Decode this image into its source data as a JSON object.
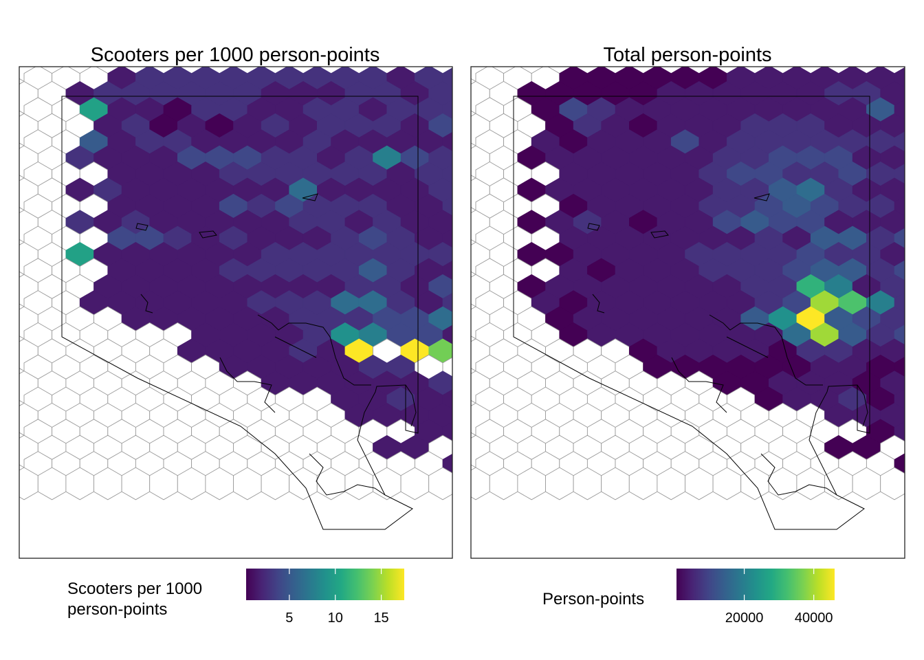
{
  "chart_data": [
    {
      "type": "heatmap",
      "title": "Scooters per 1000 person-points",
      "legend": {
        "title_lines": [
          "Scooters per 1000",
          "person-points"
        ],
        "ticks": [
          5,
          10,
          15
        ],
        "tick_labels": [
          "5",
          "10",
          "15"
        ],
        "range": [
          0.3,
          17.5
        ],
        "palette": "viridis"
      },
      "fill_values": [
        "000000000000000000000",
        "000233333333323330000",
        "002333333222332323300",
        "009221332233233333320",
        "000231212323332432300",
        "005233222232222233330",
        "003222444332374333200",
        "000222233333323333300",
        "002322222262222332200",
        "000222243433322332300",
        "003232222233232223300",
        "000443232223432224300",
        "009222222333333332300",
        "000222233333532242200",
        "000222222222332463300",
        "002222223336632322200",
        "000022222233344632200",
        "000000222238744222300",
        "000000222232F0FC00FA0",
        "000000022222330000000",
        "000000000222222322000",
        "000000000002232222000",
        "000000000000222200000",
        "000000000000002222000",
        "000000000000022002220",
        "000000000000000223200",
        "000000000000000000000"
      ]
    },
    {
      "type": "heatmap",
      "title": "Total person-points",
      "legend": {
        "title_lines": [
          "Person-points"
        ],
        "ticks": [
          20000,
          40000
        ],
        "tick_labels": [
          "20000",
          "40000"
        ],
        "range": [
          500,
          46000
        ],
        "palette": "viridis"
      },
      "fill_values": [
        "000000000000000000000",
        "000111111222222221110",
        "001111122222233222100",
        "001432222222225221110",
        "000132122233322242100",
        "002122242333333322220",
        "001222222334442222200",
        "000222223443343333300",
        "001222222335632232200",
        "000122223345433222100",
        "001232122454422223300",
        "000222222232553444100",
        "001122223333433222200",
        "000212223334553433300",
        "001222222233A7232200",
        "002122222234DB7332200",
        "000122222258F543322100",
        "000122222226D5343322000",
        "000000122221332221200",
        "000000111111221112000",
        "000000000112221221000",
        "000000000012231221000",
        "000000000000022211000",
        "000000000000001220000",
        "000000000000011001210",
        "000000000000000111100",
        "000000000000000000000"
      ]
    }
  ]
}
